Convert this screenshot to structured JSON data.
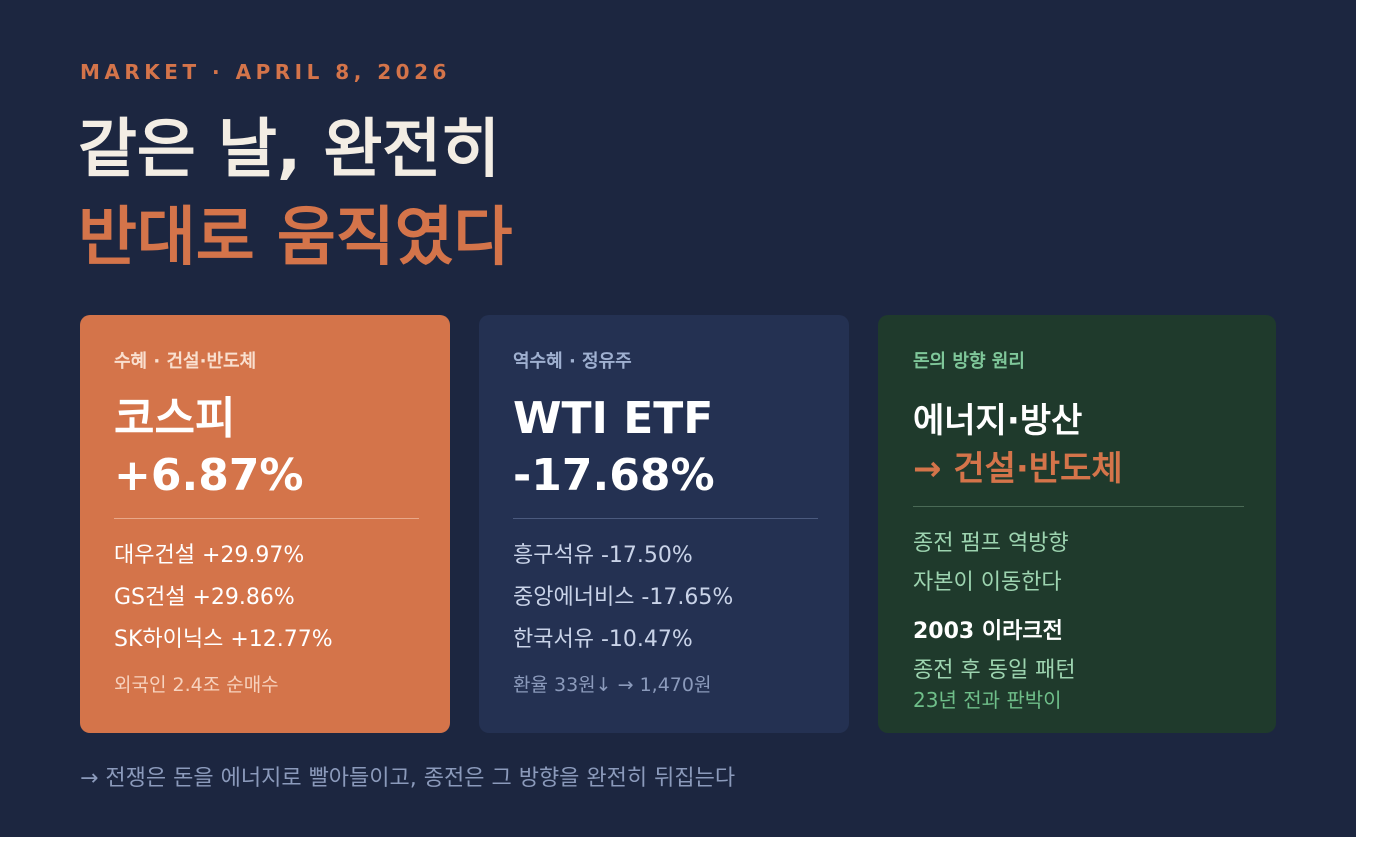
{
  "header": {
    "kicker": "MARKET · APRIL 8, 2026",
    "title_line1": "같은 날, 완전히",
    "title_line2": "반대로 움직였다"
  },
  "cards": [
    {
      "label": "수혜 · 건설·반도체",
      "title": "코스피",
      "value": "+6.87%",
      "items": [
        "대우건설 +29.97%",
        "GS건설 +29.86%",
        "SK하이닉스 +12.77%"
      ],
      "note": "외국인 2.4조 순매수"
    },
    {
      "label": "역수혜 · 정유주",
      "title": "WTI ETF",
      "value": "-17.68%",
      "items": [
        "흥구석유 -17.50%",
        "중앙에너비스 -17.65%",
        "한국서유 -10.47%"
      ],
      "note": "환율 33원↓ → 1,470원"
    },
    {
      "label": "돈의 방향 원리",
      "title": "에너지·방산",
      "title_accent": "→ 건설·반도체",
      "lines": [
        "종전 펌프 역방향",
        "자본이 이동한다"
      ],
      "subhead": "2003 이라크전",
      "sublines": [
        "종전 후 동일 패턴"
      ],
      "note": "23년 전과 판박이"
    }
  ],
  "footer": "→ 전쟁은 돈을 에너지로 빨아들이고, 종전은 그 방향을 완전히 뒤집는다"
}
